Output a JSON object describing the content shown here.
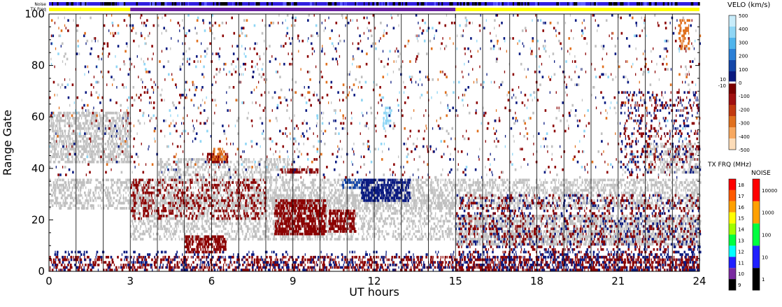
{
  "chart_data": {
    "type": "heatmap",
    "xlabel": "UT hours",
    "ylabel": "Range Gate",
    "xlim": [
      0,
      24
    ],
    "ylim": [
      0,
      100
    ],
    "x_ticks": [
      "0",
      "3",
      "6",
      "9",
      "12",
      "15",
      "18",
      "21",
      "24"
    ],
    "y_ticks": [
      "0",
      "20",
      "40",
      "60",
      "80",
      "100"
    ],
    "minor_vertical_lines_hours": [
      1,
      2,
      3,
      4,
      5,
      6,
      7,
      8,
      9,
      10,
      11,
      12,
      13,
      14,
      15,
      16,
      17,
      18,
      19,
      20,
      21,
      22,
      23
    ],
    "header_rows": {
      "noise_label": "Noise",
      "txfreq_label": "TX Freq",
      "noise_color": "#3020e0",
      "txfreq_segments": [
        {
          "from": 0,
          "to": 3,
          "color": "#ffff00"
        },
        {
          "from": 3,
          "to": 15,
          "color": "#6a1fa0"
        },
        {
          "from": 15,
          "to": 24,
          "color": "#ffff00"
        }
      ]
    },
    "velocity_scale": {
      "title": "VELO (km/s)",
      "ticks": [
        "500",
        "400",
        "300",
        "200",
        "100",
        "0",
        "-100",
        "-200",
        "-300",
        "-400",
        "-500"
      ],
      "extra_ticks": [
        "10",
        "-10"
      ],
      "colors": [
        "#c8ecfa",
        "#8fd6f5",
        "#4fb4ec",
        "#2a7fd6",
        "#1446a8",
        "#0a1a80",
        "#7a0000",
        "#a01010",
        "#c23a10",
        "#e0701e",
        "#f7a860",
        "#fcdcb8"
      ]
    },
    "txfreq_scale": {
      "title": "TX FRQ (MHz)",
      "ticks": [
        "18",
        "17",
        "16",
        "15",
        "14",
        "13",
        "12",
        "11",
        "10",
        "9"
      ],
      "colors": [
        "#ff0000",
        "#ff5a00",
        "#ffa000",
        "#ffff00",
        "#a0ff00",
        "#00ff40",
        "#00ffff",
        "#2020ff",
        "#7a2aa0",
        "#000000"
      ]
    },
    "noise_scale": {
      "title": "NOISE",
      "ticks": [
        "10000",
        "1000",
        "100",
        "10",
        "1"
      ],
      "colors": [
        "#ff0000",
        "#ffa000",
        "#00ff40",
        "#2020ff",
        "#000000"
      ]
    },
    "scatter_regions": [
      {
        "kind": "ground",
        "color": "#c0c0c0",
        "x0": 0,
        "x1": 3,
        "y0": 42,
        "y1": 62,
        "density": 0.6
      },
      {
        "kind": "ground",
        "color": "#c0c0c0",
        "x0": 0,
        "x1": 24,
        "y0": 24,
        "y1": 36,
        "density": 0.45
      },
      {
        "kind": "ground",
        "color": "#c0c0c0",
        "x0": 15,
        "x1": 24,
        "y0": 10,
        "y1": 22,
        "density": 0.8
      },
      {
        "kind": "ground",
        "color": "#c0c0c0",
        "x0": 3,
        "x1": 15,
        "y0": 12,
        "y1": 30,
        "density": 0.35
      },
      {
        "kind": "ground",
        "color": "#c0c0c0",
        "x0": 22,
        "x1": 24,
        "y0": 38,
        "y1": 50,
        "density": 0.4
      },
      {
        "kind": "ground",
        "color": "#c0c0c0",
        "x0": 4,
        "x1": 9,
        "y0": 36,
        "y1": 44,
        "density": 0.4
      },
      {
        "kind": "away",
        "color": "#8b0000",
        "x0": 8.3,
        "x1": 10.2,
        "y0": 14,
        "y1": 28,
        "density": 0.9
      },
      {
        "kind": "away",
        "color": "#8b0000",
        "x0": 10.3,
        "x1": 11.3,
        "y0": 15,
        "y1": 24,
        "density": 0.85
      },
      {
        "kind": "away",
        "color": "#8b0000",
        "x0": 5,
        "x1": 6.5,
        "y0": 7,
        "y1": 14,
        "density": 0.8
      },
      {
        "kind": "away",
        "color": "#8b0000",
        "x0": 0,
        "x1": 24,
        "y0": 0,
        "y1": 6,
        "density": 0.35
      },
      {
        "kind": "away",
        "color": "#8b0000",
        "x0": 3,
        "x1": 8,
        "y0": 20,
        "y1": 36,
        "density": 0.25
      },
      {
        "kind": "away",
        "color": "#8b0000",
        "x0": 5.8,
        "x1": 6.6,
        "y0": 42,
        "y1": 46,
        "density": 0.8
      },
      {
        "kind": "away",
        "color": "#8b0000",
        "x0": 8.5,
        "x1": 10,
        "y0": 38,
        "y1": 40,
        "density": 0.8
      },
      {
        "kind": "away",
        "color": "#e0701e",
        "x0": 6.0,
        "x1": 6.5,
        "y0": 43,
        "y1": 48,
        "density": 0.6
      },
      {
        "kind": "toward",
        "color": "#0a1a80",
        "x0": 11.5,
        "x1": 13.3,
        "y0": 27,
        "y1": 36,
        "density": 0.85
      },
      {
        "kind": "toward",
        "color": "#1446a8",
        "x0": 10.8,
        "x1": 11.5,
        "y0": 32,
        "y1": 36,
        "density": 0.6
      },
      {
        "kind": "toward",
        "color": "#0a1a80",
        "x0": 0,
        "x1": 24,
        "y0": 0,
        "y1": 8,
        "density": 0.12
      },
      {
        "kind": "toward",
        "color": "#0a1a80",
        "x0": 15,
        "x1": 24,
        "y0": 0,
        "y1": 30,
        "density": 0.1
      },
      {
        "kind": "away",
        "color": "#8b0000",
        "x0": 15,
        "x1": 24,
        "y0": 0,
        "y1": 30,
        "density": 0.12
      },
      {
        "kind": "toward",
        "color": "#0a1a80",
        "x0": 21,
        "x1": 24,
        "y0": 38,
        "y1": 70,
        "density": 0.08
      },
      {
        "kind": "away",
        "color": "#8b0000",
        "x0": 21,
        "x1": 24,
        "y0": 40,
        "y1": 70,
        "density": 0.08
      },
      {
        "kind": "away",
        "color": "#e0701e",
        "x0": 23.2,
        "x1": 23.6,
        "y0": 86,
        "y1": 98,
        "density": 0.5
      },
      {
        "kind": "toward",
        "color": "#8fd6f5",
        "x0": 12.3,
        "x1": 12.6,
        "y0": 55,
        "y1": 64,
        "density": 0.4
      },
      {
        "kind": "sparse",
        "color": "#8b0000",
        "x0": 0,
        "x1": 24,
        "y0": 36,
        "y1": 100,
        "density": 0.015
      },
      {
        "kind": "sparse",
        "color": "#0a1a80",
        "x0": 0,
        "x1": 24,
        "y0": 36,
        "y1": 100,
        "density": 0.01
      },
      {
        "kind": "sparse",
        "color": "#c0c0c0",
        "x0": 0,
        "x1": 24,
        "y0": 36,
        "y1": 100,
        "density": 0.01
      },
      {
        "kind": "sparse",
        "color": "#e0701e",
        "x0": 0,
        "x1": 24,
        "y0": 40,
        "y1": 100,
        "density": 0.005
      },
      {
        "kind": "sparse",
        "color": "#8fd6f5",
        "x0": 0,
        "x1": 24,
        "y0": 40,
        "y1": 100,
        "density": 0.005
      }
    ]
  }
}
